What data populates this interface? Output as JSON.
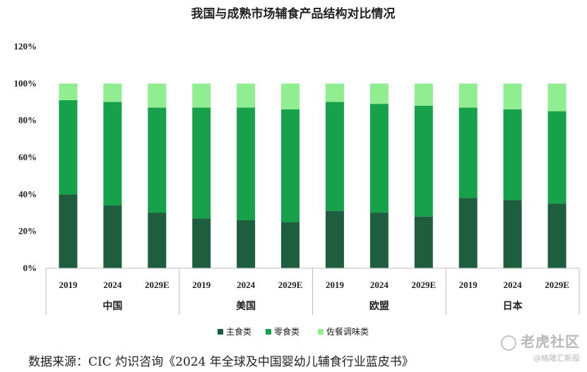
{
  "chart_data": {
    "type": "bar",
    "stacked": true,
    "title": "我国与成熟市场辅食产品结构对比情况",
    "groups": [
      {
        "name": "中国",
        "categories": [
          "2019",
          "2024",
          "2029E"
        ]
      },
      {
        "name": "美国",
        "categories": [
          "2019",
          "2024",
          "2029E"
        ]
      },
      {
        "name": "欧盟",
        "categories": [
          "2019",
          "2024",
          "2029E"
        ]
      },
      {
        "name": "日本",
        "categories": [
          "2019",
          "2024",
          "2029E"
        ]
      }
    ],
    "series": [
      {
        "name": "主食类",
        "color": "#1e5e3f",
        "values": [
          40,
          34,
          30,
          27,
          26,
          25,
          31,
          30,
          28,
          38,
          37,
          35
        ]
      },
      {
        "name": "零食类",
        "color": "#16a14a",
        "values": [
          51,
          56,
          57,
          60,
          61,
          61,
          59,
          59,
          60,
          49,
          49,
          50
        ]
      },
      {
        "name": "佐餐调味类",
        "color": "#90ee90",
        "values": [
          9,
          10,
          13,
          13,
          13,
          14,
          10,
          11,
          12,
          13,
          14,
          15
        ]
      }
    ],
    "ylim": [
      0,
      120
    ],
    "yticks": [
      "0%",
      "20%",
      "40%",
      "60%",
      "80%",
      "100%",
      "120%"
    ],
    "legend_position": "bottom",
    "grid": false
  },
  "source_text": "数据来源：CIC 灼识咨询《2024 年全球及中国婴幼儿辅食行业蓝皮书》",
  "watermark": {
    "main": "老虎社区",
    "sub": "@格隆汇新股"
  }
}
